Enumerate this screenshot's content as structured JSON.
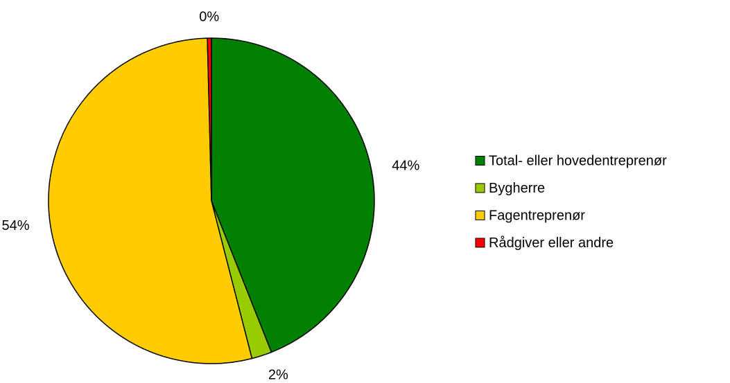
{
  "chart_data": {
    "type": "pie",
    "categories": [
      "Total- eller hovedentreprenør",
      "Bygherre",
      "Fagentreprenør",
      "Rådgiver eller andre"
    ],
    "values": [
      44,
      2,
      53.6,
      0.4
    ],
    "value_labels": [
      "44%",
      "2%",
      "54%",
      "0%"
    ],
    "colors": [
      "#008000",
      "#99cc00",
      "#ffcc00",
      "#ff0000"
    ],
    "legend": "right"
  }
}
